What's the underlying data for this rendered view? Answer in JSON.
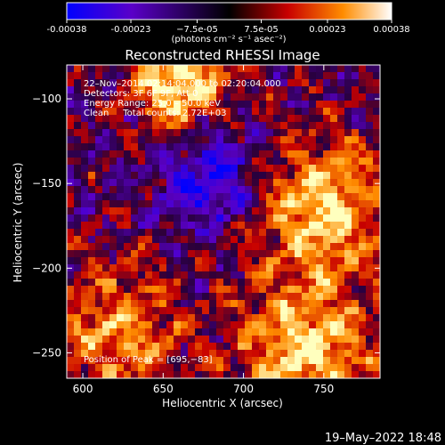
{
  "chart_data": {
    "type": "heatmap",
    "title": "Reconstructed RHESSI Image",
    "xlabel": "Heliocentric X (arcsec)",
    "ylabel": "Heliocentric Y (arcsec)",
    "xlim": [
      590,
      785
    ],
    "ylim": [
      -265,
      -80
    ],
    "x_ticks": [
      600,
      650,
      700,
      750
    ],
    "y_ticks": [
      -100,
      -150,
      -200,
      -250
    ],
    "colorbar": {
      "range": [
        -0.00038,
        0.00038
      ],
      "tick_values": [
        -0.00038,
        -0.00023,
        -7.5e-05,
        7.5e-05,
        0.00023,
        0.00038
      ],
      "tick_labels": [
        "-0.00038",
        "-0.00023",
        "−7.5e-05",
        "7.5e-05",
        "0.00023",
        "0.00038"
      ],
      "unit_label": "(photons cm⁻² s⁻¹ asec⁻²)",
      "colormap": [
        "#0000ff",
        "#5a00c8",
        "#000000",
        "#c80000",
        "#ff8c00",
        "#ffffff"
      ]
    },
    "annotations": [
      "22–Nov–2014 02:14:04.000 to 02:20:04.000",
      "Detectors: 3F 6F 9F, Att 0",
      "Energy Range: 25.0 – 50.0 keV",
      "Clean     Total counts: 2.72E+03",
      "Position of Peak = [695,−83]"
    ],
    "peak_position": [
      695,
      -83
    ],
    "grid": false
  },
  "footer": {
    "date": "19–May–2022 18:48"
  }
}
